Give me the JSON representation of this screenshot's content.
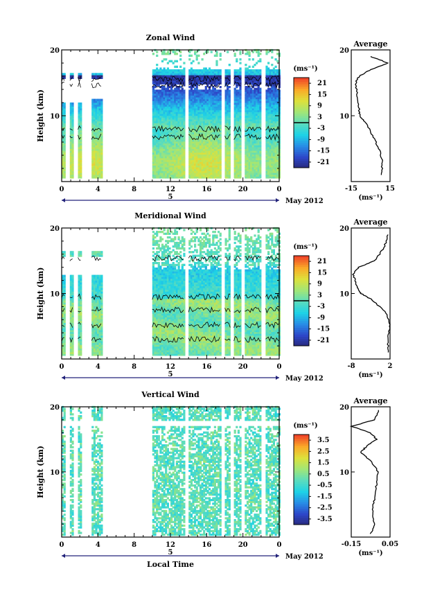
{
  "chart_data": [
    {
      "type": "heatmap",
      "title": "Zonal Wind",
      "ylabel": "Height (km)",
      "y_ticks": [
        "10",
        "20"
      ],
      "ylim": [
        0,
        20
      ],
      "x_ticks": [
        "0",
        "4",
        "8",
        "12",
        "16",
        "20",
        "0"
      ],
      "date_label": "5",
      "month_label": "May 2012",
      "colorbar": {
        "unit": "(ms⁻¹)",
        "ticks": [
          "21",
          "15",
          "9",
          "3",
          "-3",
          "-9",
          "-15",
          "-21"
        ],
        "range": [
          -24,
          24
        ]
      },
      "gaps_hours": [
        [
          4.5,
          10.0
        ]
      ],
      "average_profile": {
        "title": "Average",
        "xlabel": "(ms⁻¹)",
        "x_ticks": [
          "-15",
          "15"
        ],
        "xlim": [
          -15,
          15
        ],
        "y_ticks": [
          "10",
          "20"
        ],
        "heights": [
          1,
          3,
          5,
          7,
          9,
          10,
          11,
          13,
          15,
          16,
          17,
          18,
          19
        ],
        "values": [
          8.5,
          9.0,
          6.5,
          1.5,
          -4.0,
          -8.5,
          -9.0,
          -10.5,
          -11.5,
          -9.0,
          0.0,
          13.5,
          0.0
        ]
      }
    },
    {
      "type": "heatmap",
      "title": "Meridional Wind",
      "ylabel": "Height (km)",
      "y_ticks": [
        "10",
        "20"
      ],
      "ylim": [
        0,
        20
      ],
      "x_ticks": [
        "0",
        "4",
        "8",
        "12",
        "16",
        "20",
        "0"
      ],
      "date_label": "5",
      "month_label": "May 2012",
      "colorbar": {
        "unit": "(ms⁻¹)",
        "ticks": [
          "21",
          "15",
          "9",
          "3",
          "-3",
          "-9",
          "-15",
          "-21"
        ],
        "range": [
          -24,
          24
        ]
      },
      "gaps_hours": [
        [
          4.5,
          10.0
        ]
      ],
      "average_profile": {
        "title": "Average",
        "xlabel": "(ms⁻¹)",
        "x_ticks": [
          "-8",
          "2"
        ],
        "xlim": [
          -8,
          2
        ],
        "y_ticks": [
          "10",
          "20"
        ],
        "heights": [
          1,
          3,
          5,
          7,
          9,
          10,
          11,
          12,
          13,
          14,
          15,
          17,
          19
        ],
        "values": [
          1.5,
          1.5,
          2.0,
          1.0,
          -2.5,
          -5.5,
          -6.5,
          -7.0,
          -7.5,
          -6.0,
          -2.0,
          0.5,
          1.5
        ]
      }
    },
    {
      "type": "heatmap",
      "title": "Vertical Wind",
      "ylabel": "Height (km)",
      "y_ticks": [
        "10",
        "20"
      ],
      "ylim": [
        0,
        20
      ],
      "x_ticks": [
        "0",
        "4",
        "8",
        "12",
        "16",
        "20",
        "0"
      ],
      "date_label": "5",
      "month_label": "May 2012",
      "xlabel": "Local Time",
      "colorbar": {
        "unit": "(ms⁻¹)",
        "ticks": [
          "3.5",
          "2.5",
          "1.5",
          "0.5",
          "-0.5",
          "-1.5",
          "-2.5",
          "-3.5"
        ],
        "range": [
          -4,
          4
        ]
      },
      "gaps_hours": [
        [
          4.5,
          10.0
        ]
      ],
      "average_profile": {
        "title": "Average",
        "xlabel": "(ms⁻¹)",
        "x_ticks": [
          "-0.15",
          "0.05"
        ],
        "xlim": [
          -0.15,
          0.05
        ],
        "y_ticks": [
          "10",
          "20"
        ],
        "heights": [
          0.5,
          2,
          4,
          6,
          8,
          10,
          12,
          13,
          14,
          15,
          16,
          17,
          18,
          19.5
        ],
        "values": [
          -0.05,
          -0.03,
          -0.04,
          -0.03,
          -0.02,
          -0.01,
          -0.06,
          -0.1,
          -0.07,
          -0.02,
          -0.05,
          -0.15,
          -0.03,
          -0.01
        ]
      }
    }
  ]
}
